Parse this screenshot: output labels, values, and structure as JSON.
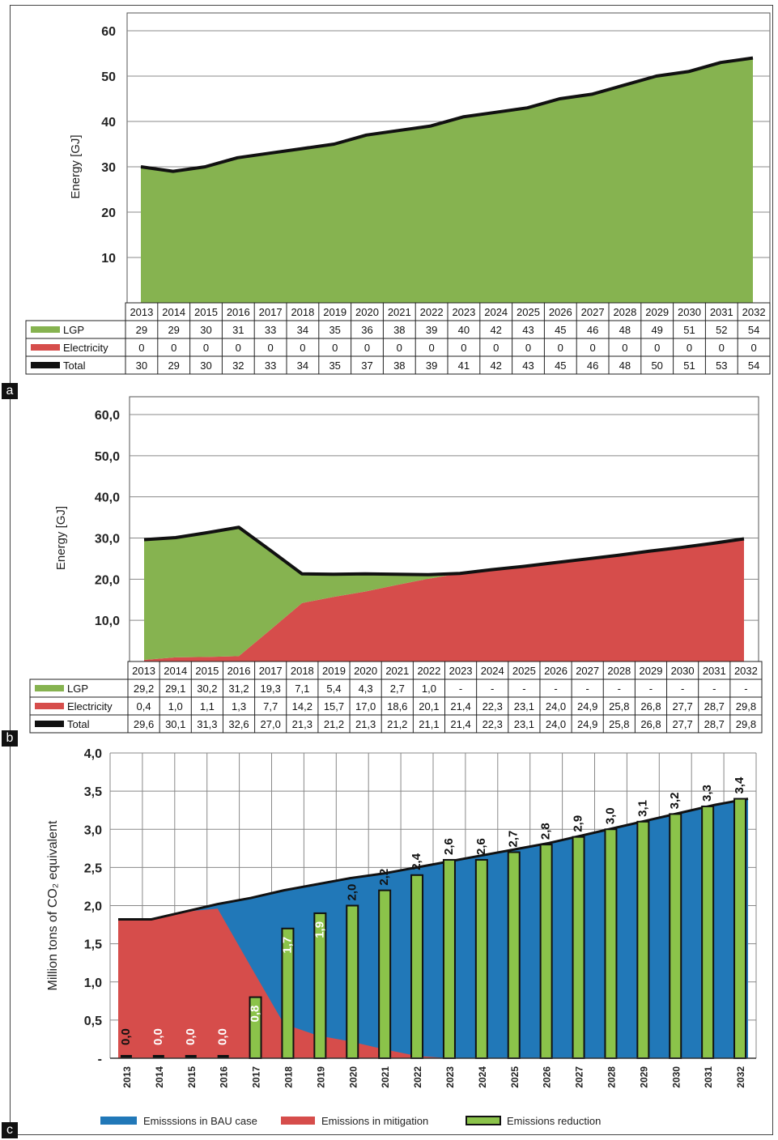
{
  "panel_labels": [
    "a",
    "b",
    "c"
  ],
  "colors": {
    "lgp": "#86b350",
    "electricity": "#d64d4b",
    "total": "#111111",
    "bau": "#2178b8",
    "mitigation": "#d64d4b",
    "reduction": "#8bc34a",
    "grid": "#888888"
  },
  "chart_data": [
    {
      "type": "area",
      "panel": "a",
      "ylabel": "Energy [GJ]",
      "ylim": [
        0,
        60
      ],
      "yticks": [
        "10",
        "20",
        "30",
        "40",
        "50",
        "60"
      ],
      "ytick_values": [
        10,
        20,
        30,
        40,
        50,
        60
      ],
      "categories": [
        "2013",
        "2014",
        "2015",
        "2016",
        "2017",
        "2018",
        "2019",
        "2020",
        "2021",
        "2022",
        "2023",
        "2024",
        "2025",
        "2026",
        "2027",
        "2028",
        "2029",
        "2030",
        "2031",
        "2032"
      ],
      "series": [
        {
          "name": "LGP",
          "values": [
            29,
            29,
            30,
            31,
            33,
            34,
            35,
            36,
            38,
            39,
            40,
            42,
            43,
            45,
            46,
            48,
            49,
            51,
            52,
            54
          ]
        },
        {
          "name": "Electricity",
          "values": [
            0,
            0,
            0,
            0,
            0,
            0,
            0,
            0,
            0,
            0,
            0,
            0,
            0,
            0,
            0,
            0,
            0,
            0,
            0,
            0
          ]
        },
        {
          "name": "Total",
          "values": [
            30,
            29,
            30,
            32,
            33,
            34,
            35,
            37,
            38,
            39,
            41,
            42,
            43,
            45,
            46,
            48,
            50,
            51,
            53,
            54
          ]
        }
      ],
      "table": {
        "header": [
          "2013",
          "2014",
          "2015",
          "2016",
          "2017",
          "2018",
          "2019",
          "2020",
          "2021",
          "2022",
          "2023",
          "2024",
          "2025",
          "2026",
          "2027",
          "2028",
          "2029",
          "2030",
          "2031",
          "2032"
        ],
        "rows": [
          {
            "label": "LGP",
            "cells": [
              "29",
              "29",
              "30",
              "31",
              "33",
              "34",
              "35",
              "36",
              "38",
              "39",
              "40",
              "42",
              "43",
              "45",
              "46",
              "48",
              "49",
              "51",
              "52",
              "54"
            ]
          },
          {
            "label": "Electricity",
            "cells": [
              "0",
              "0",
              "0",
              "0",
              "0",
              "0",
              "0",
              "0",
              "0",
              "0",
              "0",
              "0",
              "0",
              "0",
              "0",
              "0",
              "0",
              "0",
              "0",
              "0"
            ]
          },
          {
            "label": "Total",
            "cells": [
              "30",
              "29",
              "30",
              "32",
              "33",
              "34",
              "35",
              "37",
              "38",
              "39",
              "41",
              "42",
              "43",
              "45",
              "46",
              "48",
              "50",
              "51",
              "53",
              "54"
            ]
          }
        ]
      }
    },
    {
      "type": "area",
      "panel": "b",
      "ylabel": "Energy [GJ]",
      "ylim": [
        0,
        60
      ],
      "yticks": [
        "10,0",
        "20,0",
        "30,0",
        "40,0",
        "50,0",
        "60,0"
      ],
      "ytick_values": [
        10,
        20,
        30,
        40,
        50,
        60
      ],
      "categories": [
        "2013",
        "2014",
        "2015",
        "2016",
        "2017",
        "2018",
        "2019",
        "2020",
        "2021",
        "2022",
        "2023",
        "2024",
        "2025",
        "2026",
        "2027",
        "2028",
        "2029",
        "2030",
        "2031",
        "2032"
      ],
      "series": [
        {
          "name": "LGP",
          "values": [
            29.2,
            29.1,
            30.2,
            31.2,
            19.3,
            7.1,
            5.4,
            4.3,
            2.7,
            1.0,
            0,
            0,
            0,
            0,
            0,
            0,
            0,
            0,
            0,
            0
          ]
        },
        {
          "name": "Electricity",
          "values": [
            0.4,
            1.0,
            1.1,
            1.3,
            7.7,
            14.2,
            15.7,
            17.0,
            18.6,
            20.1,
            21.4,
            22.3,
            23.1,
            24.0,
            24.9,
            25.8,
            26.8,
            27.7,
            28.7,
            29.8
          ]
        },
        {
          "name": "Total",
          "values": [
            29.6,
            30.1,
            31.3,
            32.6,
            27.0,
            21.3,
            21.2,
            21.3,
            21.2,
            21.1,
            21.4,
            22.3,
            23.1,
            24.0,
            24.9,
            25.8,
            26.8,
            27.7,
            28.7,
            29.8
          ]
        }
      ],
      "table": {
        "header": [
          "2013",
          "2014",
          "2015",
          "2016",
          "2017",
          "2018",
          "2019",
          "2020",
          "2021",
          "2022",
          "2023",
          "2024",
          "2025",
          "2026",
          "2027",
          "2028",
          "2029",
          "2030",
          "2031",
          "2032"
        ],
        "rows": [
          {
            "label": "LGP",
            "cells": [
              "29,2",
              "29,1",
              "30,2",
              "31,2",
              "19,3",
              "7,1",
              "5,4",
              "4,3",
              "2,7",
              "1,0",
              "-",
              "-",
              "-",
              "-",
              "-",
              "-",
              "-",
              "-",
              "-",
              "-"
            ]
          },
          {
            "label": "Electricity",
            "cells": [
              "0,4",
              "1,0",
              "1,1",
              "1,3",
              "7,7",
              "14,2",
              "15,7",
              "17,0",
              "18,6",
              "20,1",
              "21,4",
              "22,3",
              "23,1",
              "24,0",
              "24,9",
              "25,8",
              "26,8",
              "27,7",
              "28,7",
              "29,8"
            ]
          },
          {
            "label": "Total",
            "cells": [
              "29,6",
              "30,1",
              "31,3",
              "32,6",
              "27,0",
              "21,3",
              "21,2",
              "21,3",
              "21,2",
              "21,1",
              "21,4",
              "22,3",
              "23,1",
              "24,0",
              "24,9",
              "25,8",
              "26,8",
              "27,7",
              "28,7",
              "29,8"
            ]
          }
        ]
      }
    },
    {
      "type": "bar",
      "panel": "c",
      "ylabel": "Million tons of CO₂ equivalent",
      "ylim": [
        0,
        4
      ],
      "yticks": [
        "-",
        "0,5",
        "1,0",
        "1,5",
        "2,0",
        "2,5",
        "3,0",
        "3,5",
        "4,0"
      ],
      "ytick_values": [
        0,
        0.5,
        1.0,
        1.5,
        2.0,
        2.5,
        3.0,
        3.5,
        4.0
      ],
      "categories": [
        "2013",
        "2014",
        "2015",
        "2016",
        "2017",
        "2018",
        "2019",
        "2020",
        "2021",
        "2022",
        "2023",
        "2024",
        "2025",
        "2026",
        "2027",
        "2028",
        "2029",
        "2030",
        "2031",
        "2032"
      ],
      "series": [
        {
          "name": "Emisssions in BAU case",
          "values": [
            1.82,
            1.82,
            1.92,
            2.02,
            2.1,
            2.2,
            2.28,
            2.36,
            2.42,
            2.5,
            2.58,
            2.66,
            2.74,
            2.82,
            2.92,
            3.02,
            3.12,
            3.22,
            3.32,
            3.4
          ]
        },
        {
          "name": "Emissions in mitigation",
          "values": [
            1.82,
            1.82,
            1.92,
            1.96,
            1.2,
            0.45,
            0.3,
            0.22,
            0.12,
            0.03,
            0,
            0,
            0,
            0,
            0,
            0,
            0,
            0,
            0,
            0
          ]
        },
        {
          "name": "Emissions reduction",
          "values": [
            0.0,
            0.0,
            0.0,
            0.0,
            0.8,
            1.7,
            1.9,
            2.0,
            2.2,
            2.4,
            2.6,
            2.6,
            2.7,
            2.8,
            2.9,
            3.0,
            3.1,
            3.2,
            3.3,
            3.4
          ]
        }
      ],
      "bar_labels": [
        "0,0",
        "0,0",
        "0,0",
        "0,0",
        "0,8",
        "1,7",
        "1,9",
        "2,0",
        "2,2",
        "2,4",
        "2,6",
        "2,6",
        "2,7",
        "2,8",
        "2,9",
        "3,0",
        "3,1",
        "3,2",
        "3,3",
        "3,4"
      ],
      "legend": [
        "Emisssions in BAU case",
        "Emissions in mitigation",
        "Emissions reduction"
      ],
      "grid": true,
      "legend_position": "bottom"
    }
  ]
}
